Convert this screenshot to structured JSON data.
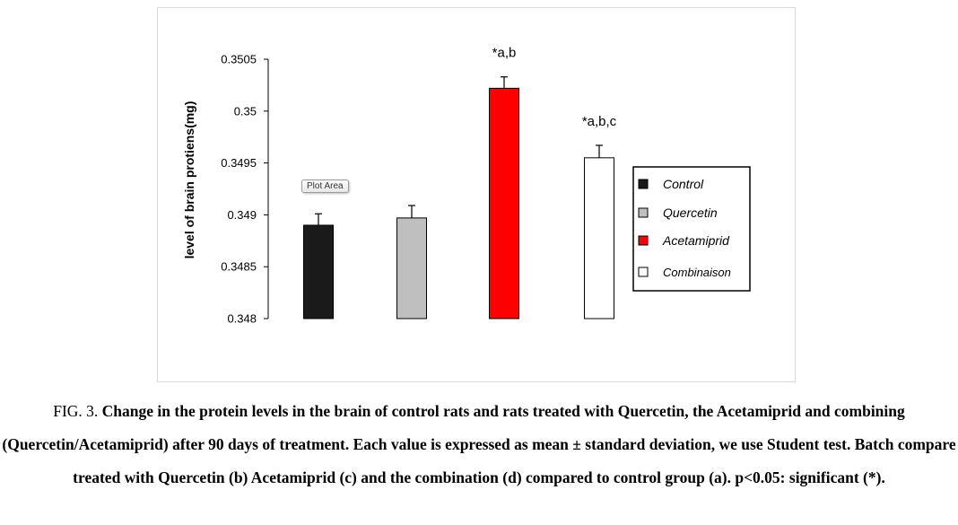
{
  "chart_data": {
    "type": "bar",
    "title": "",
    "xlabel": "",
    "ylabel": "level of brain protiens(mg)",
    "ylim": [
      0.348,
      0.3505
    ],
    "yticks": [
      "0.348",
      "0.3485",
      "0.349",
      "0.3495",
      "0.35",
      "0.3505"
    ],
    "ytick_values": [
      0.348,
      0.3485,
      0.349,
      0.3495,
      0.35,
      0.3505
    ],
    "categories": [
      "Control",
      "Quercetin",
      "Acetamiprid",
      "Combinaison"
    ],
    "values": [
      0.3489,
      0.34897,
      0.35022,
      0.34955
    ],
    "errors": [
      0.00011,
      0.00012,
      0.00011,
      0.00012
    ],
    "annotations": [
      "",
      "",
      "*a,b",
      "*a,b,c"
    ],
    "colors": [
      "#1a1a1a",
      "#bfbfbf",
      "#ff0000",
      "#ffffff"
    ],
    "grid": false,
    "legend_position": "right",
    "tooltip": "Plot Area"
  },
  "caption": {
    "label": "FIG. 3.",
    "text": "Change in the protein levels in the brain of control rats and rats treated with Quercetin, the Acetamiprid and combining (Quercetin/Acetamiprid) after 90 days of treatment. Each value is expressed as mean ± standard deviation, we use Student test. Batch compare treated with Quercetin (b) Acetamiprid (c) and the combination (d) compared to control group (a). p<0.05: significant (*)."
  }
}
